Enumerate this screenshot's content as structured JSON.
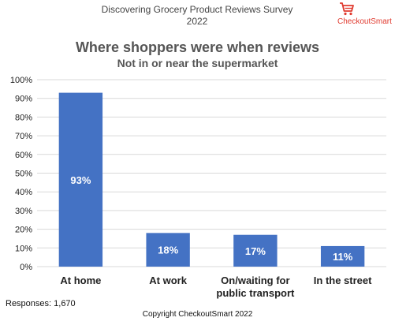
{
  "header": {
    "survey_title": "Discovering Grocery Product Reviews Survey",
    "survey_year": "2022",
    "logo_text": "CheckoutSmart",
    "logo_icon": "shopping-cart-icon",
    "brand_color": "#e03a2f"
  },
  "chart_data": {
    "type": "bar",
    "title": "Where shoppers were when  reviews",
    "subtitle": "Not in or near the supermarket",
    "categories": [
      [
        "At home"
      ],
      [
        "At work"
      ],
      [
        "On/waiting for",
        "public transport"
      ],
      [
        "In the street"
      ]
    ],
    "values": [
      93,
      18,
      17,
      11
    ],
    "value_labels": [
      "93%",
      "18%",
      "17%",
      "11%"
    ],
    "ylim": [
      0,
      100
    ],
    "ytick_labels": [
      "0%",
      "10%",
      "20%",
      "30%",
      "40%",
      "50%",
      "60%",
      "70%",
      "80%",
      "90%",
      "100%"
    ],
    "grid": true,
    "legend": "none",
    "bar_color": "#4472c4",
    "grid_color": "#d9d9d9"
  },
  "footer": {
    "responses": "Responses: 1,670",
    "copyright": "Copyright CheckoutSmart 2022"
  }
}
